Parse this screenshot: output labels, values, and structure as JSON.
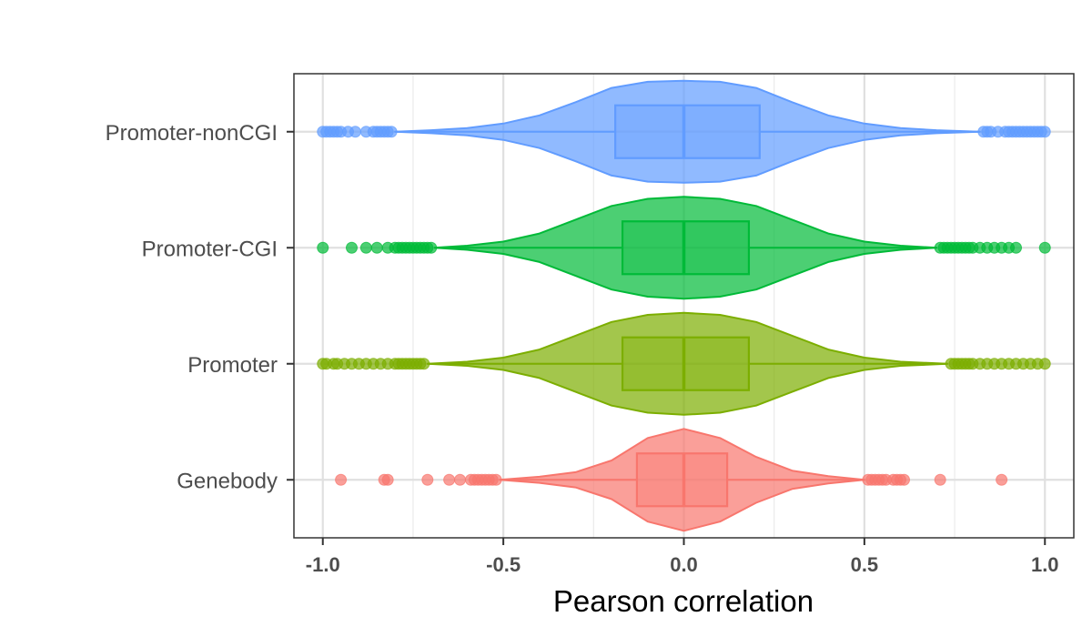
{
  "chart_data": {
    "type": "violin",
    "orientation": "horizontal",
    "title": "",
    "xlabel": "Pearson correlation",
    "ylabel": "",
    "xlim": [
      -1.08,
      1.08
    ],
    "x_ticks": [
      -1.0,
      -0.5,
      0.0,
      0.5,
      1.0
    ],
    "x_tick_labels": [
      "-1.0",
      "-0.5",
      "0.0",
      "0.5",
      "1.0"
    ],
    "grid": true,
    "legend": "none",
    "categories": [
      "Genebody",
      "Promoter",
      "Promoter-CGI",
      "Promoter-nonCGI"
    ],
    "series": [
      {
        "category": "Genebody",
        "color": "#F8766D",
        "box": {
          "q1": -0.13,
          "median": 0.0,
          "q3": 0.12,
          "whisker_low": -0.51,
          "whisker_high": 0.5
        },
        "density": [
          [
            -0.51,
            0.0
          ],
          [
            -0.4,
            0.06
          ],
          [
            -0.3,
            0.15
          ],
          [
            -0.2,
            0.38
          ],
          [
            -0.1,
            0.82
          ],
          [
            0.0,
            1.0
          ],
          [
            0.1,
            0.82
          ],
          [
            0.2,
            0.45
          ],
          [
            0.3,
            0.18
          ],
          [
            0.4,
            0.07
          ],
          [
            0.5,
            0.0
          ]
        ],
        "outliers": [
          -0.95,
          -0.83,
          -0.82,
          -0.71,
          -0.65,
          -0.62,
          -0.59,
          -0.58,
          -0.57,
          -0.56,
          -0.55,
          -0.54,
          -0.53,
          -0.52,
          0.51,
          0.52,
          0.53,
          0.54,
          0.55,
          0.56,
          0.58,
          0.59,
          0.6,
          0.61,
          0.71,
          0.88
        ]
      },
      {
        "category": "Promoter",
        "color": "#7CAE00",
        "box": {
          "q1": -0.17,
          "median": 0.0,
          "q3": 0.18,
          "whisker_low": -0.71,
          "whisker_high": 0.73
        },
        "density": [
          [
            -0.71,
            0.0
          ],
          [
            -0.6,
            0.04
          ],
          [
            -0.5,
            0.12
          ],
          [
            -0.4,
            0.28
          ],
          [
            -0.3,
            0.55
          ],
          [
            -0.2,
            0.82
          ],
          [
            -0.1,
            0.96
          ],
          [
            0.0,
            1.0
          ],
          [
            0.1,
            0.96
          ],
          [
            0.2,
            0.82
          ],
          [
            0.3,
            0.55
          ],
          [
            0.4,
            0.28
          ],
          [
            0.5,
            0.12
          ],
          [
            0.6,
            0.04
          ],
          [
            0.73,
            0.0
          ]
        ],
        "outliers": [
          -1.0,
          -0.99,
          -0.97,
          -0.96,
          -0.94,
          -0.92,
          -0.9,
          -0.88,
          -0.86,
          -0.84,
          -0.82,
          -0.8,
          -0.79,
          -0.78,
          -0.77,
          -0.76,
          -0.75,
          -0.74,
          -0.73,
          -0.72,
          0.74,
          0.75,
          0.76,
          0.77,
          0.78,
          0.79,
          0.8,
          0.82,
          0.84,
          0.86,
          0.88,
          0.9,
          0.92,
          0.94,
          0.96,
          0.98,
          1.0
        ]
      },
      {
        "category": "Promoter-CGI",
        "color": "#00BA38",
        "box": {
          "q1": -0.17,
          "median": 0.0,
          "q3": 0.18,
          "whisker_low": -0.69,
          "whisker_high": 0.7
        },
        "density": [
          [
            -0.69,
            0.0
          ],
          [
            -0.6,
            0.04
          ],
          [
            -0.5,
            0.12
          ],
          [
            -0.4,
            0.28
          ],
          [
            -0.3,
            0.55
          ],
          [
            -0.2,
            0.82
          ],
          [
            -0.1,
            0.96
          ],
          [
            0.0,
            1.0
          ],
          [
            0.1,
            0.96
          ],
          [
            0.2,
            0.82
          ],
          [
            0.3,
            0.55
          ],
          [
            0.4,
            0.28
          ],
          [
            0.5,
            0.12
          ],
          [
            0.6,
            0.04
          ],
          [
            0.7,
            0.0
          ]
        ],
        "outliers": [
          -1.0,
          -0.92,
          -0.88,
          -0.85,
          -0.82,
          -0.8,
          -0.79,
          -0.78,
          -0.77,
          -0.76,
          -0.75,
          -0.74,
          -0.73,
          -0.72,
          -0.71,
          -0.7,
          0.71,
          0.72,
          0.73,
          0.74,
          0.75,
          0.76,
          0.77,
          0.78,
          0.79,
          0.8,
          0.82,
          0.84,
          0.86,
          0.88,
          0.9,
          0.92,
          1.0
        ]
      },
      {
        "category": "Promoter-nonCGI",
        "color": "#619CFF",
        "box": {
          "q1": -0.19,
          "median": 0.0,
          "q3": 0.21,
          "whisker_low": -0.8,
          "whisker_high": 0.82
        },
        "density": [
          [
            -0.8,
            0.0
          ],
          [
            -0.7,
            0.03
          ],
          [
            -0.6,
            0.07
          ],
          [
            -0.5,
            0.16
          ],
          [
            -0.4,
            0.32
          ],
          [
            -0.3,
            0.58
          ],
          [
            -0.2,
            0.86
          ],
          [
            -0.1,
            0.98
          ],
          [
            0.0,
            1.0
          ],
          [
            0.1,
            0.98
          ],
          [
            0.2,
            0.86
          ],
          [
            0.3,
            0.58
          ],
          [
            0.4,
            0.32
          ],
          [
            0.5,
            0.16
          ],
          [
            0.6,
            0.07
          ],
          [
            0.7,
            0.03
          ],
          [
            0.82,
            0.0
          ]
        ],
        "outliers": [
          -1.0,
          -0.99,
          -0.98,
          -0.97,
          -0.96,
          -0.95,
          -0.93,
          -0.91,
          -0.88,
          -0.86,
          -0.85,
          -0.84,
          -0.83,
          -0.82,
          -0.81,
          0.83,
          0.84,
          0.85,
          0.87,
          0.89,
          0.9,
          0.91,
          0.92,
          0.93,
          0.94,
          0.95,
          0.96,
          0.97,
          0.98,
          0.99,
          1.0
        ]
      }
    ]
  }
}
